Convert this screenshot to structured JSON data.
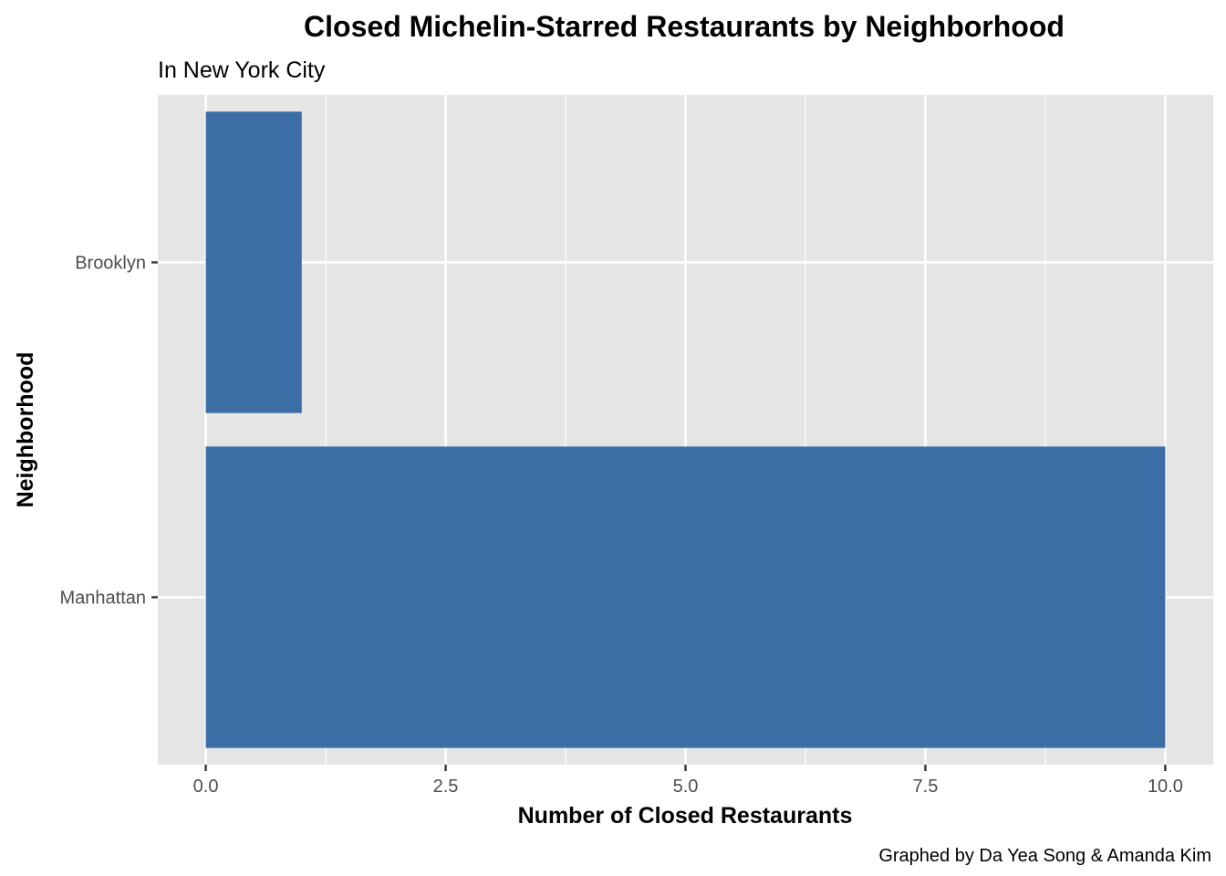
{
  "chart_data": {
    "type": "bar",
    "orientation": "horizontal",
    "title": "Closed Michelin-Starred Restaurants by Neighborhood",
    "subtitle": "In New York City",
    "caption": "Graphed by Da Yea Song & Amanda Kim",
    "xlabel": "Number of Closed Restaurants",
    "ylabel": "Neighborhood",
    "categories": [
      "Brooklyn",
      "Manhattan"
    ],
    "values": [
      1,
      10
    ],
    "xlim": [
      -0.5,
      10.5
    ],
    "x_ticks": [
      0,
      2.5,
      5,
      7.5,
      10
    ],
    "x_tick_labels": [
      "0.0",
      "2.5",
      "5.0",
      "7.5",
      "10.0"
    ],
    "grid": true,
    "legend": "none",
    "colors": {
      "bar": "#3a6ea5",
      "panel_background": "#e5e5e5",
      "grid": "#ffffff",
      "tick_label": "#4d4d4d",
      "tick_mark": "#333333"
    }
  }
}
